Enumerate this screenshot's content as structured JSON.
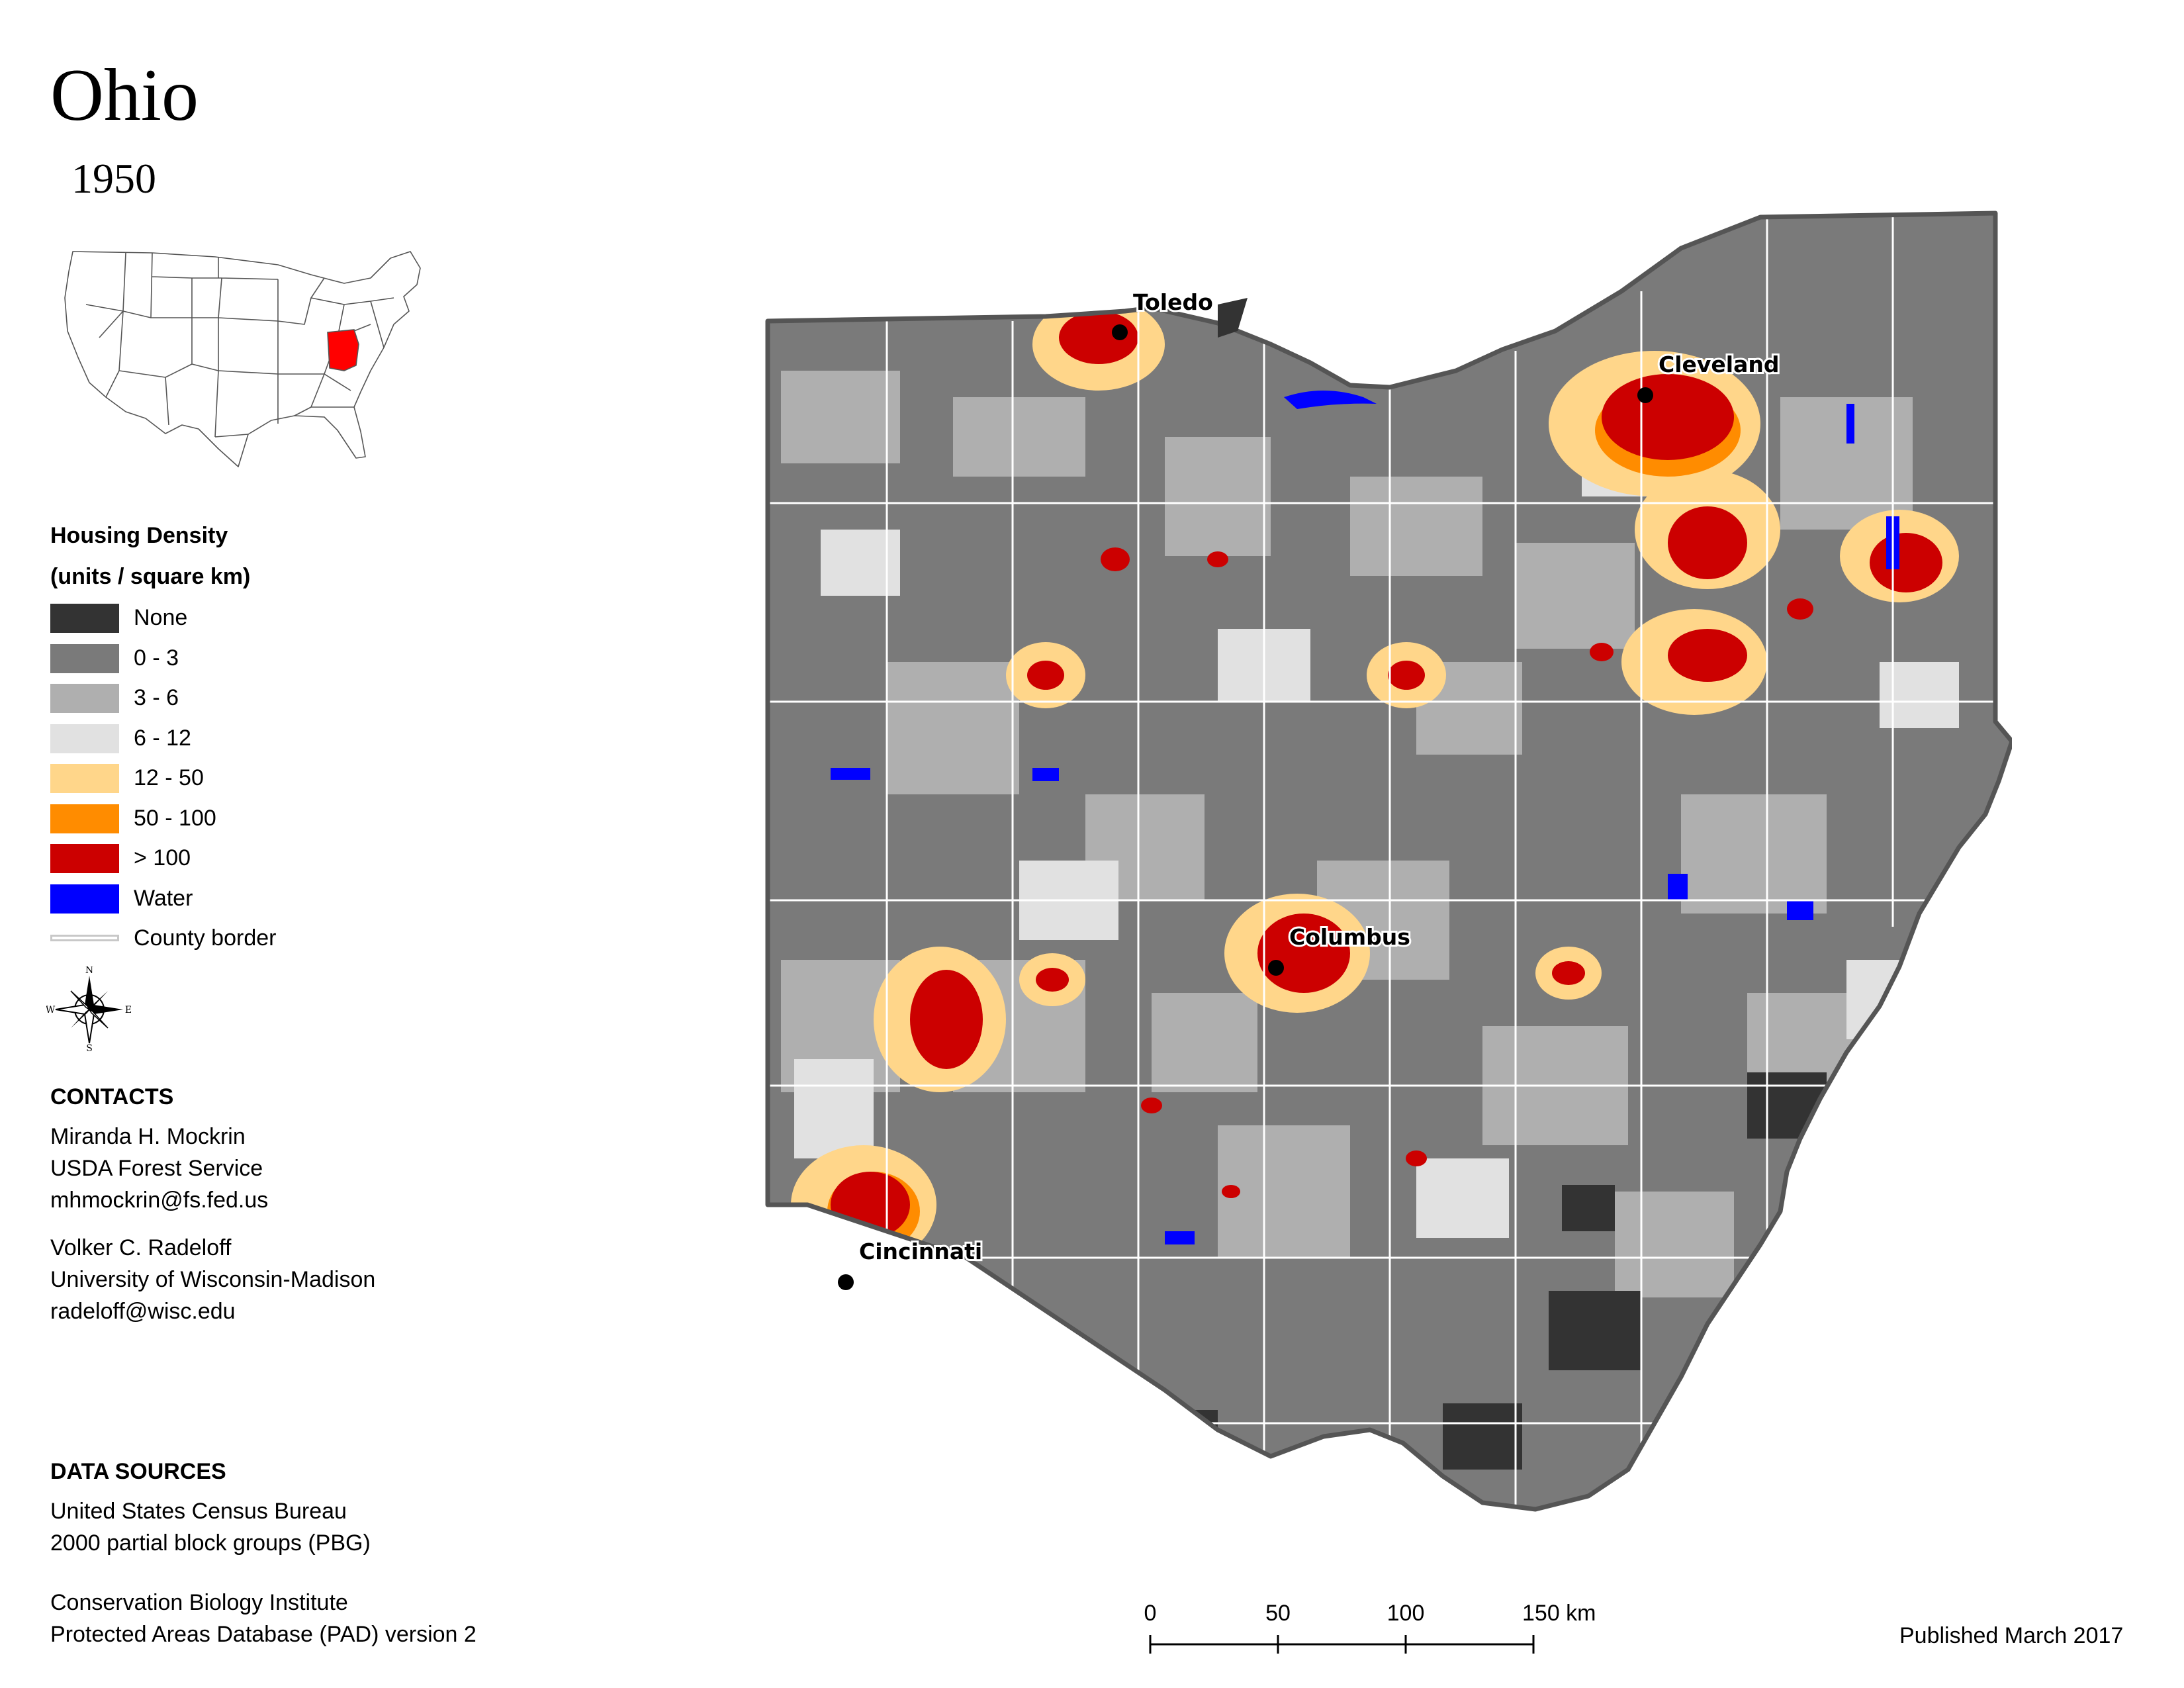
{
  "title": "Ohio",
  "subtitle": "1950",
  "legend": {
    "title_line1": "Housing Density",
    "title_line2": "(units / square km)",
    "items": [
      {
        "label": "None",
        "color": "#333333"
      },
      {
        "label": "0 - 3",
        "color": "#7a7a7a"
      },
      {
        "label": "3 - 6",
        "color": "#afafaf"
      },
      {
        "label": "6 - 12",
        "color": "#e1e1e1"
      },
      {
        "label": "12 - 50",
        "color": "#ffd68a"
      },
      {
        "label": "50 - 100",
        "color": "#ff8c00"
      },
      {
        "label": "> 100",
        "color": "#cc0000"
      },
      {
        "label": "Water",
        "color": "#0000ff"
      }
    ],
    "county_border_label": "County border"
  },
  "compass": {
    "n": "N",
    "e": "E",
    "s": "S",
    "w": "W"
  },
  "contacts": {
    "heading": "CONTACTS",
    "person1": [
      "Miranda H. Mockrin",
      "USDA Forest Service",
      "mhmockrin@fs.fed.us"
    ],
    "person2": [
      "Volker C. Radeloff",
      "University of Wisconsin-Madison",
      "radeloff@wisc.edu"
    ]
  },
  "data_sources": {
    "heading": "DATA SOURCES",
    "source1": [
      "United States Census Bureau",
      "2000 partial block groups (PBG)"
    ],
    "source2": [
      "Conservation Biology Institute",
      "Protected Areas Database (PAD) version 2"
    ]
  },
  "cities": [
    {
      "name": "Toledo"
    },
    {
      "name": "Cleveland"
    },
    {
      "name": "Columbus"
    },
    {
      "name": "Cincinnati"
    }
  ],
  "scale_bar": {
    "ticks": [
      "0",
      "50",
      "100",
      "150 km"
    ]
  },
  "published": "Published March 2017",
  "locator_highlight_color": "#ff0000"
}
